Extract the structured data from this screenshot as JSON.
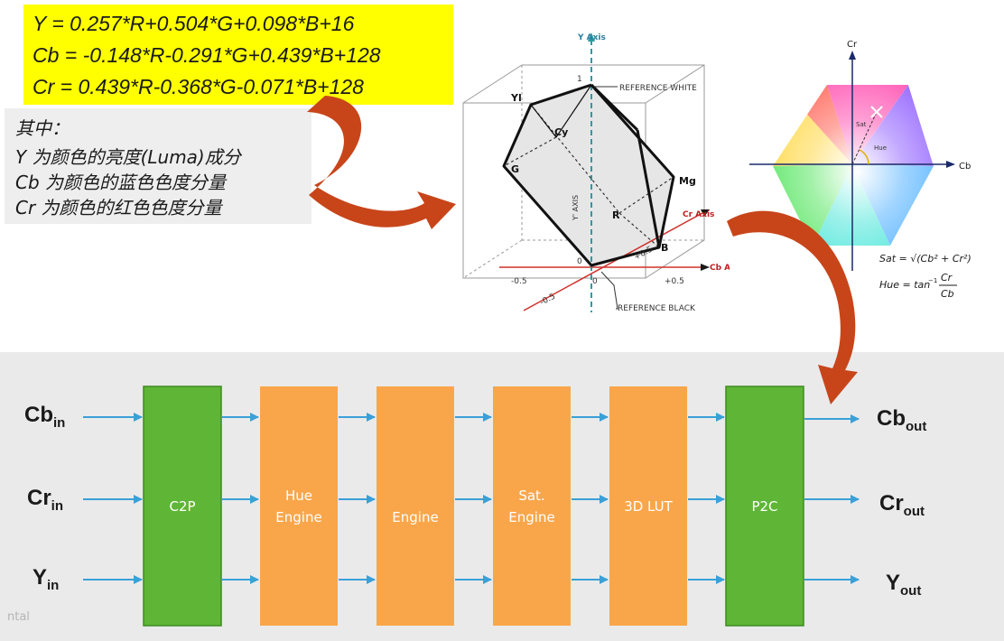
{
  "formulas": {
    "y": "Y = 0.257*R+0.504*G+0.098*B+16",
    "cb": "Cb = -0.148*R-0.291*G+0.439*B+128",
    "cr": "Cr = 0.439*R-0.368*G-0.071*B+128"
  },
  "notes": {
    "heading": "其中：",
    "lines": [
      "Y  为颜色的亮度(Luma)成分",
      "Cb 为颜色的蓝色色度分量",
      "Cr  为颜色的红色色度分量"
    ]
  },
  "cube": {
    "y_axis": "Y Axis",
    "y_axis_vertical": "Y' AXIS",
    "cr_axis": "Cr Axis",
    "cb_axis": "Cb Axis",
    "reference_white": "REFERENCE WHITE",
    "reference_black": "REFERENCE BLACK",
    "vertices": {
      "yl": "Yl",
      "cy": "Cy",
      "g": "G",
      "mg": "Mg",
      "r": "R",
      "b": "B"
    },
    "ticks": {
      "top": "1",
      "origin": "0",
      "neg_cb": "-0.5",
      "zero_cb": "0",
      "pos_cb": "+0.5",
      "neg_cr": "-0.5",
      "pos_cr": "+0.5"
    }
  },
  "hexagon": {
    "cr_label": "Cr",
    "cb_label": "Cb",
    "sat_label": "Sat",
    "hue_label": "Hue",
    "sat_formula": "Sat = √(Cb² + Cr²)",
    "hue_formula_prefix": "Hue = tan",
    "hue_formula_sup": "−1",
    "hue_numerator": "Cr",
    "hue_denominator": "Cb"
  },
  "pipeline": {
    "inputs": [
      {
        "base": "Cb",
        "sub": "in"
      },
      {
        "base": "Cr",
        "sub": "in"
      },
      {
        "base": "Y",
        "sub": "in"
      }
    ],
    "outputs": [
      {
        "base": "Cb",
        "sub": "out"
      },
      {
        "base": "Cr",
        "sub": "out"
      },
      {
        "base": "Y",
        "sub": "out"
      }
    ],
    "blocks": [
      {
        "label": "C2P",
        "color": "#5fb636"
      },
      {
        "label": "Hue\nEngine",
        "color": "#f9a64a"
      },
      {
        "label": "Engine",
        "color": "#f9a64a"
      },
      {
        "label": "Sat.\nEngine",
        "color": "#f9a64a"
      },
      {
        "label": "3D LUT",
        "color": "#f9a64a"
      },
      {
        "label": "P2C",
        "color": "#5fb636"
      }
    ],
    "arrow_color": "#3aa0d8",
    "footer": "ntal"
  },
  "colors": {
    "formula_bg": "#ffff00",
    "curved_arrow": "#c8451a",
    "green_block": "#5fb636",
    "orange_block": "#f9a64a"
  }
}
